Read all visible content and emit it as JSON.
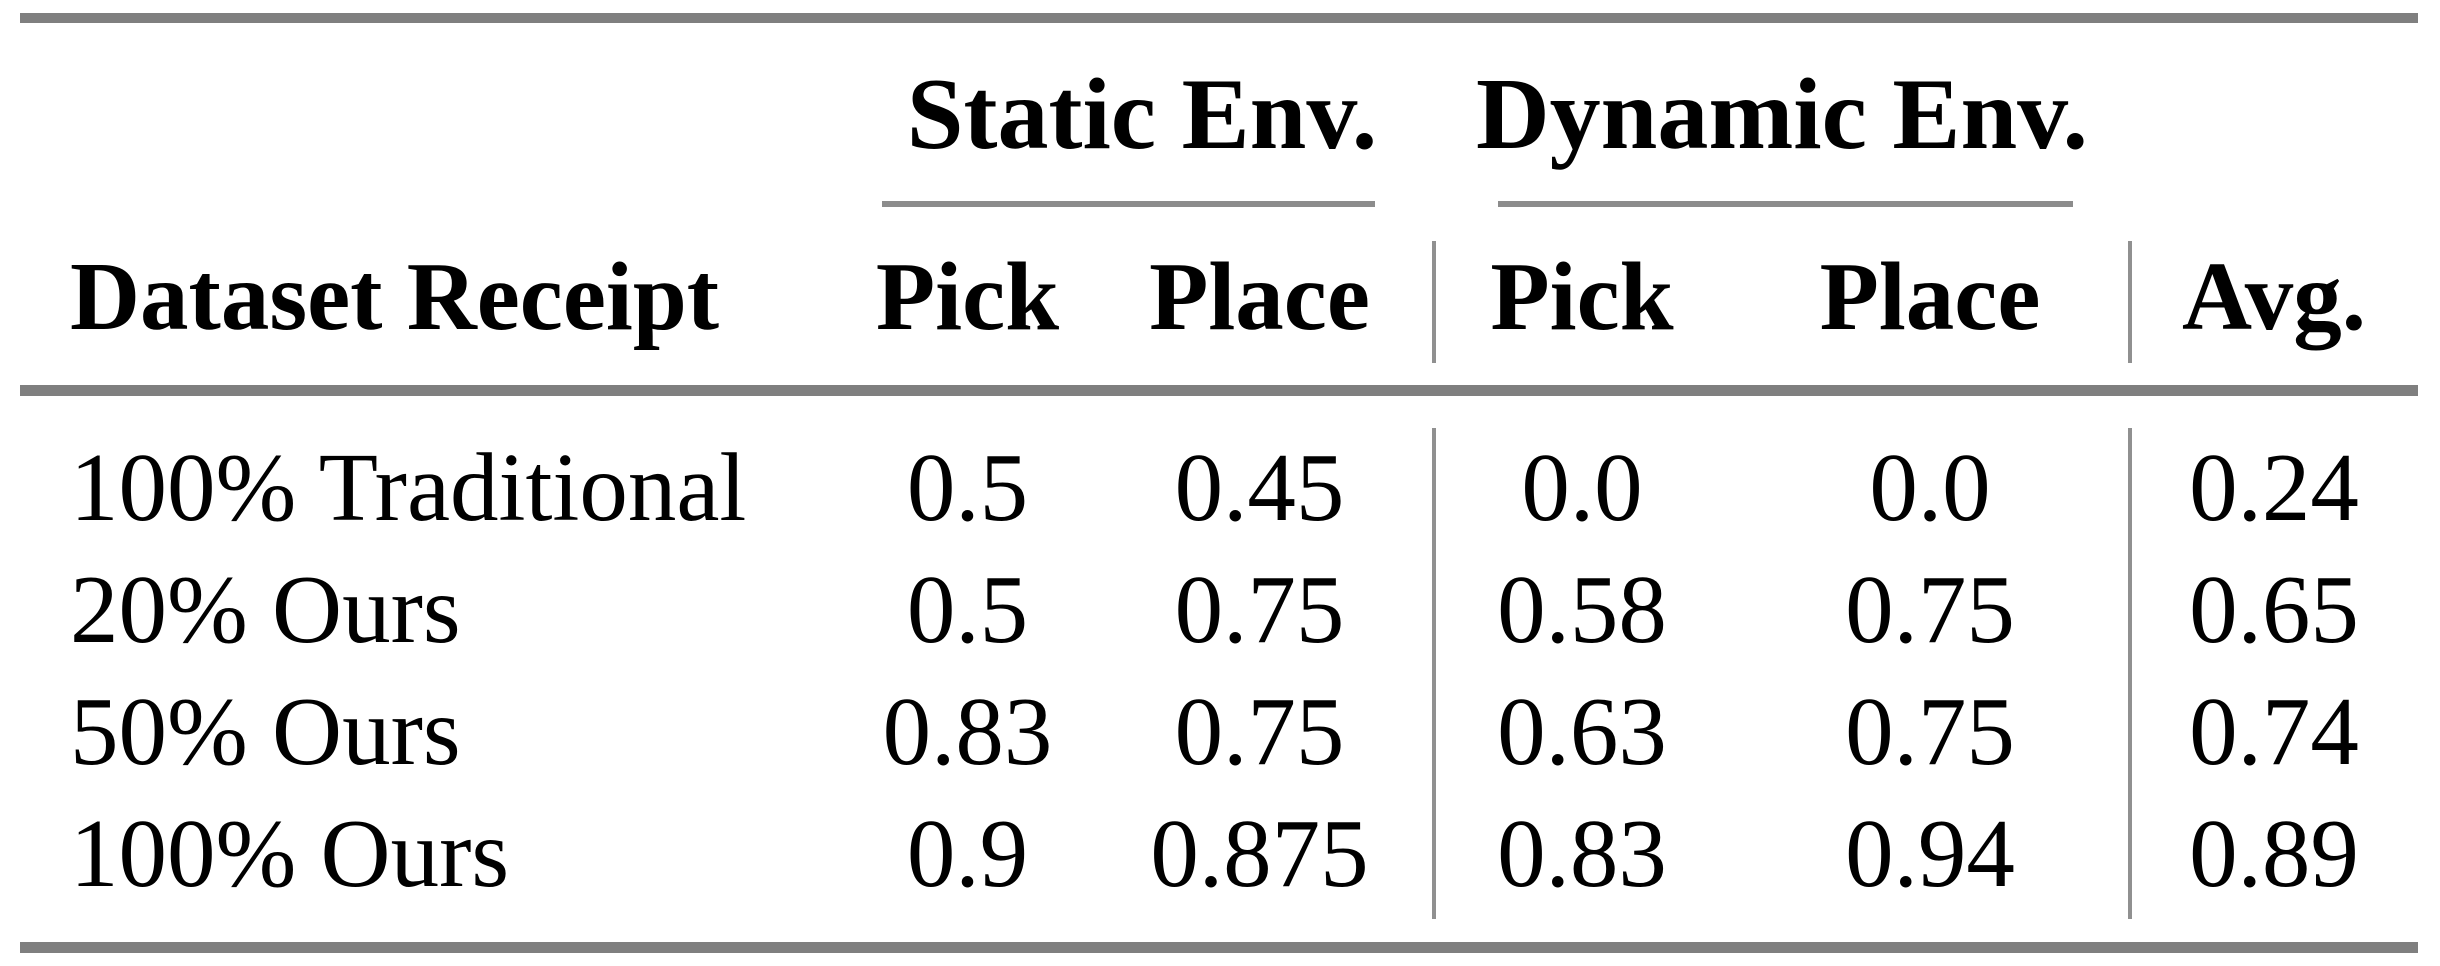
{
  "colors": {
    "background": "#ffffff",
    "text": "#000000",
    "rule_heavy": "#7f7f7f",
    "rule_light": "#8c8c8c",
    "rule_vertical": "#909090"
  },
  "table": {
    "group_headers": {
      "static": "Static Env.",
      "dynamic": "Dynamic Env."
    },
    "column_headers": {
      "row_label": "Dataset Receipt",
      "static_pick": "Pick",
      "static_place": "Place",
      "dynamic_pick": "Pick",
      "dynamic_place": "Place",
      "avg": "Avg."
    },
    "rows": [
      {
        "label": "100% Traditional",
        "static_pick": "0.5",
        "static_place": "0.45",
        "dynamic_pick": "0.0",
        "dynamic_place": "0.0",
        "avg": "0.24"
      },
      {
        "label": "20% Ours",
        "static_pick": "0.5",
        "static_place": "0.75",
        "dynamic_pick": "0.58",
        "dynamic_place": "0.75",
        "avg": "0.65"
      },
      {
        "label": "50% Ours",
        "static_pick": "0.83",
        "static_place": "0.75",
        "dynamic_pick": "0.63",
        "dynamic_place": "0.75",
        "avg": "0.74"
      },
      {
        "label": "100% Ours",
        "static_pick": "0.9",
        "static_place": "0.875",
        "dynamic_pick": "0.83",
        "dynamic_place": "0.94",
        "avg": "0.89"
      }
    ]
  }
}
